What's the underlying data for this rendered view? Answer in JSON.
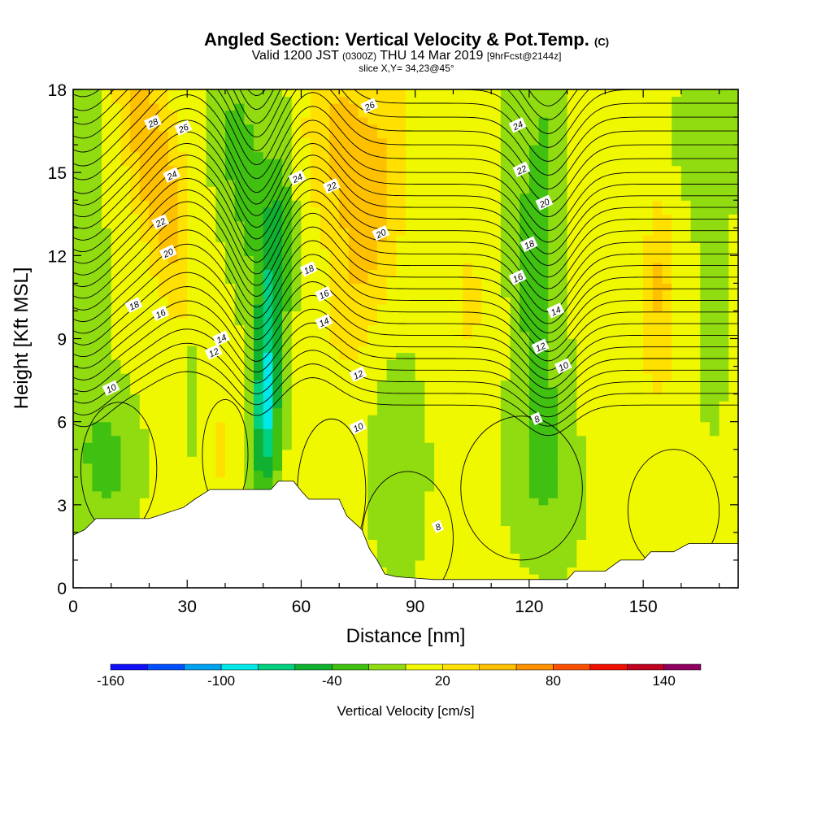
{
  "header": {
    "title": "Angled Section: Vertical Velocity & Pot.Temp.",
    "title_unit": "(C)",
    "valid_prefix": "Valid 1200 JST",
    "valid_utc": "(0300Z)",
    "valid_date": "THU 14 Mar 2019",
    "forecast": "[9hrFcst@2144z]",
    "slice": "slice X,Y= 34,23@45°"
  },
  "chart_data": {
    "type": "heatmap",
    "xlabel": "Distance [nm]",
    "ylabel": "Height [Kft MSL]",
    "xlim": [
      0,
      175
    ],
    "ylim": [
      0,
      18
    ],
    "xticks_major": [
      0,
      30,
      60,
      90,
      120,
      150
    ],
    "xticks_minor_step": 10,
    "yticks_major": [
      0,
      3,
      6,
      9,
      12,
      15,
      18
    ],
    "yticks_minor_step": 1,
    "colorbar": {
      "title": "Vertical Velocity [cm/s]",
      "tick_labels": [
        "-160",
        "-100",
        "-40",
        "20",
        "80",
        "140"
      ],
      "tick_values": [
        -160,
        -100,
        -40,
        20,
        80,
        140
      ],
      "bins": [
        -160,
        -140,
        -120,
        -100,
        -80,
        -60,
        -40,
        -20,
        0,
        20,
        40,
        60,
        80,
        100,
        120,
        140,
        160
      ],
      "colors": [
        "#1010ff",
        "#0050ff",
        "#00a0f0",
        "#00e8e8",
        "#00d080",
        "#10b030",
        "#40c010",
        "#90dc10",
        "#f0f800",
        "#ffe000",
        "#ffc000",
        "#ff9000",
        "#ff5000",
        "#f01000",
        "#c00020",
        "#900060"
      ]
    },
    "terrain": [
      [
        0,
        1.9
      ],
      [
        3,
        2.1
      ],
      [
        6,
        2.5
      ],
      [
        12,
        2.5
      ],
      [
        20,
        2.5
      ],
      [
        29,
        2.9
      ],
      [
        32,
        3.2
      ],
      [
        36,
        3.55
      ],
      [
        44,
        3.55
      ],
      [
        52,
        3.55
      ],
      [
        54,
        3.85
      ],
      [
        58,
        3.85
      ],
      [
        60,
        3.5
      ],
      [
        62,
        3.2
      ],
      [
        70,
        3.2
      ],
      [
        72,
        2.6
      ],
      [
        76,
        2.1
      ],
      [
        78,
        1.4
      ],
      [
        80,
        1.0
      ],
      [
        82,
        0.5
      ],
      [
        85,
        0.4
      ],
      [
        95,
        0.3
      ],
      [
        105,
        0.3
      ],
      [
        130,
        0.3
      ],
      [
        132,
        0.6
      ],
      [
        140,
        0.6
      ],
      [
        144,
        1.0
      ],
      [
        150,
        1.0
      ],
      [
        152,
        1.3
      ],
      [
        158,
        1.3
      ],
      [
        162,
        1.6
      ],
      [
        175,
        1.6
      ]
    ],
    "isentrope_labels": [
      {
        "text": "28",
        "x": 21,
        "y": 16.8
      },
      {
        "text": "26",
        "x": 29,
        "y": 16.6
      },
      {
        "text": "24",
        "x": 26,
        "y": 14.9
      },
      {
        "text": "22",
        "x": 23,
        "y": 13.2
      },
      {
        "text": "20",
        "x": 25,
        "y": 12.1
      },
      {
        "text": "18",
        "x": 16,
        "y": 10.2
      },
      {
        "text": "16",
        "x": 23,
        "y": 9.9
      },
      {
        "text": "14",
        "x": 39,
        "y": 9.0
      },
      {
        "text": "12",
        "x": 37,
        "y": 8.5
      },
      {
        "text": "10",
        "x": 10,
        "y": 7.2
      },
      {
        "text": "24",
        "x": 59,
        "y": 14.8
      },
      {
        "text": "22",
        "x": 68,
        "y": 14.5
      },
      {
        "text": "18",
        "x": 62,
        "y": 11.5
      },
      {
        "text": "16",
        "x": 66,
        "y": 10.6
      },
      {
        "text": "14",
        "x": 66,
        "y": 9.6
      },
      {
        "text": "12",
        "x": 75,
        "y": 7.7
      },
      {
        "text": "10",
        "x": 75,
        "y": 5.8
      },
      {
        "text": "26",
        "x": 78,
        "y": 17.4
      },
      {
        "text": "20",
        "x": 81,
        "y": 12.8
      },
      {
        "text": "8",
        "x": 96,
        "y": 2.2
      },
      {
        "text": "24",
        "x": 117,
        "y": 16.7
      },
      {
        "text": "22",
        "x": 118,
        "y": 15.1
      },
      {
        "text": "20",
        "x": 124,
        "y": 13.9
      },
      {
        "text": "18",
        "x": 120,
        "y": 12.4
      },
      {
        "text": "16",
        "x": 117,
        "y": 11.2
      },
      {
        "text": "14",
        "x": 127,
        "y": 10.0
      },
      {
        "text": "12",
        "x": 123,
        "y": 8.7
      },
      {
        "text": "10",
        "x": 129,
        "y": 8.0
      },
      {
        "text": "8",
        "x": 122,
        "y": 6.1
      }
    ]
  }
}
